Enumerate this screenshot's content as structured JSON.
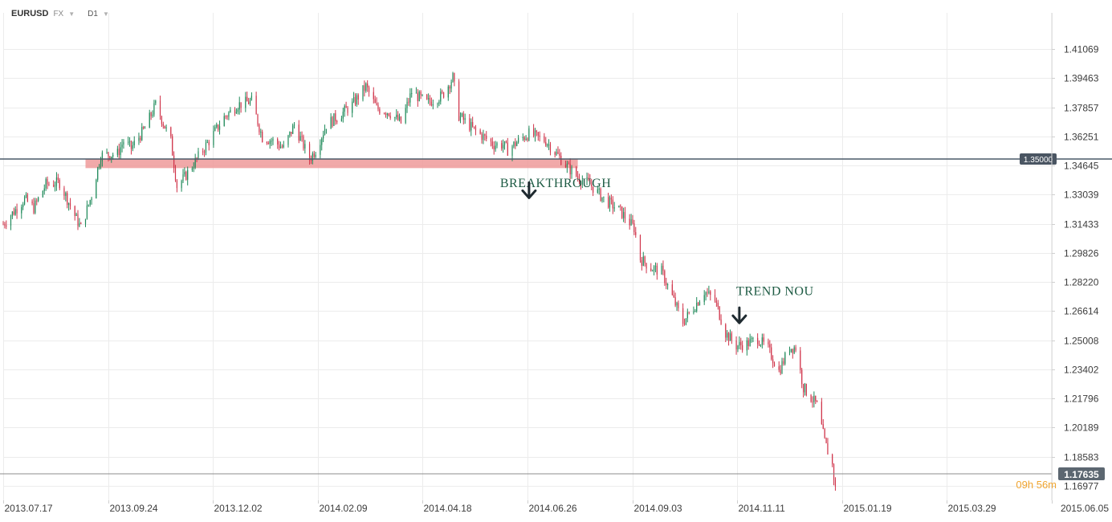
{
  "toolbar": {
    "symbol": "EURUSD",
    "market": "FX",
    "timeframe": "D1"
  },
  "chart_data": {
    "type": "candlestick",
    "symbol": "EURUSD",
    "timeframe": "D1",
    "y_ticks": [
      1.41069,
      1.39463,
      1.37857,
      1.36251,
      1.34645,
      1.33039,
      1.31433,
      1.29826,
      1.2822,
      1.26614,
      1.25008,
      1.23402,
      1.21796,
      1.20189,
      1.18583,
      1.16977
    ],
    "y_tick_labels": [
      "1.41069",
      "1.39463",
      "1.37857",
      "1.36251",
      "1.34645",
      "1.33039",
      "1.31433",
      "1.29826",
      "1.28220",
      "1.26614",
      "1.25008",
      "1.23402",
      "1.21796",
      "1.20189",
      "1.18583",
      "1.16977"
    ],
    "ylim": [
      1.1617,
      1.4227
    ],
    "x_tick_labels": [
      "2013.07.17",
      "2013.09.24",
      "2013.12.02",
      "2014.02.09",
      "2014.04.18",
      "2014.06.26",
      "2014.09.03",
      "2014.11.11",
      "2015.01.19",
      "2015.03.29",
      "2015.06.05"
    ],
    "x_range": [
      "2013-07-17",
      "2015-06-05"
    ],
    "grid": true,
    "bull_color": "#1f8a5a",
    "bear_color": "#d0344a",
    "horizontal_line": {
      "value": 1.35,
      "label": "1.35000",
      "color": "#4a5a68"
    },
    "current_price": {
      "value": 1.17635,
      "label": "1.17635"
    },
    "timer": "09h 56m",
    "support_zone": {
      "from": "2013-09-09",
      "to": "2014-07-29",
      "high": 1.35,
      "low": 1.345,
      "color": "#ef9a9a"
    },
    "annotations": [
      {
        "text": "BREAKTHROUGH",
        "date": "2014-06-08",
        "price": 1.3345,
        "arrow_date": "2014-06-27",
        "arrow_price": 1.333
      },
      {
        "text": "TREND NOU",
        "date": "2014-11-10",
        "price": 1.275,
        "arrow_date": "2014-11-12",
        "arrow_price": 1.264
      }
    ],
    "price_path": [
      [
        "2013-07-17",
        1.314
      ],
      [
        "2013-07-31",
        1.328
      ],
      [
        "2013-08-06",
        1.323
      ],
      [
        "2013-08-14",
        1.336
      ],
      [
        "2013-08-23",
        1.337
      ],
      [
        "2013-09-03",
        1.317
      ],
      [
        "2013-09-06",
        1.312
      ],
      [
        "2013-09-13",
        1.33
      ],
      [
        "2013-09-19",
        1.352
      ],
      [
        "2013-09-30",
        1.353
      ],
      [
        "2013-10-04",
        1.36
      ],
      [
        "2013-10-09",
        1.356
      ],
      [
        "2013-10-18",
        1.367
      ],
      [
        "2013-10-25",
        1.38
      ],
      [
        "2013-11-04",
        1.36
      ],
      [
        "2013-11-08",
        1.335
      ],
      [
        "2013-11-13",
        1.34
      ],
      [
        "2013-11-21",
        1.35
      ],
      [
        "2013-11-29",
        1.36
      ],
      [
        "2013-12-09",
        1.373
      ],
      [
        "2013-12-18",
        1.38
      ],
      [
        "2013-12-27",
        1.382
      ],
      [
        "2014-01-03",
        1.362
      ],
      [
        "2014-01-10",
        1.36
      ],
      [
        "2014-01-17",
        1.356
      ],
      [
        "2014-01-24",
        1.369
      ],
      [
        "2014-02-03",
        1.35
      ],
      [
        "2014-02-07",
        1.355
      ],
      [
        "2014-02-14",
        1.369
      ],
      [
        "2014-02-24",
        1.375
      ],
      [
        "2014-03-03",
        1.38
      ],
      [
        "2014-03-12",
        1.39
      ],
      [
        "2014-03-19",
        1.378
      ],
      [
        "2014-03-27",
        1.376
      ],
      [
        "2014-04-04",
        1.37
      ],
      [
        "2014-04-11",
        1.387
      ],
      [
        "2014-04-21",
        1.381
      ],
      [
        "2014-05-01",
        1.385
      ],
      [
        "2014-05-08",
        1.395
      ],
      [
        "2014-05-12",
        1.374
      ],
      [
        "2014-05-22",
        1.366
      ],
      [
        "2014-06-04",
        1.358
      ],
      [
        "2014-06-10",
        1.358
      ],
      [
        "2014-06-13",
        1.355
      ],
      [
        "2014-06-20",
        1.36
      ],
      [
        "2014-06-27",
        1.364
      ],
      [
        "2014-07-08",
        1.36
      ],
      [
        "2014-07-16",
        1.352
      ],
      [
        "2014-07-23",
        1.345
      ],
      [
        "2014-07-29",
        1.34
      ],
      [
        "2014-08-06",
        1.336
      ],
      [
        "2014-08-15",
        1.328
      ],
      [
        "2014-08-25",
        1.322
      ],
      [
        "2014-09-04",
        1.312
      ],
      [
        "2014-09-08",
        1.295
      ],
      [
        "2014-09-15",
        1.29
      ],
      [
        "2014-09-22",
        1.288
      ],
      [
        "2014-10-01",
        1.27
      ],
      [
        "2014-10-06",
        1.26
      ],
      [
        "2014-10-13",
        1.268
      ],
      [
        "2014-10-20",
        1.277
      ],
      [
        "2014-10-27",
        1.272
      ],
      [
        "2014-11-03",
        1.254
      ],
      [
        "2014-11-10",
        1.247
      ],
      [
        "2014-11-17",
        1.248
      ],
      [
        "2014-11-24",
        1.251
      ],
      [
        "2014-12-01",
        1.245
      ],
      [
        "2014-12-08",
        1.233
      ],
      [
        "2014-12-15",
        1.246
      ],
      [
        "2014-12-19",
        1.246
      ],
      [
        "2014-12-24",
        1.224
      ],
      [
        "2015-01-02",
        1.214
      ],
      [
        "2015-01-07",
        1.194
      ],
      [
        "2015-01-12",
        1.181
      ],
      [
        "2015-01-14",
        1.168
      ]
    ]
  }
}
